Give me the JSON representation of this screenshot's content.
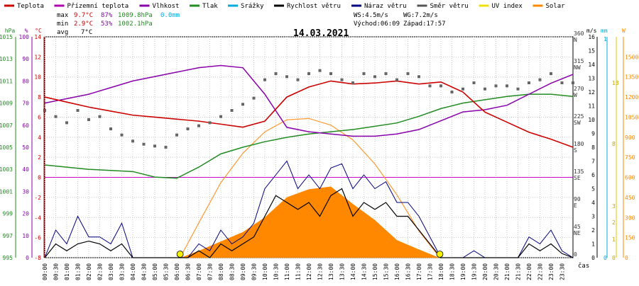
{
  "chart_data": {
    "type": "line",
    "title": "14.03.2021",
    "legend": [
      {
        "label": "Teplota",
        "color": "#cc0000"
      },
      {
        "label": "Přízemní teplota",
        "color": "#b000b0"
      },
      {
        "label": "Vlhkost",
        "color": "#8800aa"
      },
      {
        "label": "Tlak",
        "color": "#228b22"
      },
      {
        "label": "Srážky",
        "color": "#00aadd"
      },
      {
        "label": "Rychlost větru",
        "color": "#000000"
      },
      {
        "label": "Náraz větru",
        "color": "#000080"
      },
      {
        "label": "Směr větru",
        "color": "#555555"
      },
      {
        "label": "UV index",
        "color": "#f0e000"
      },
      {
        "label": "Solar",
        "color": "#ff8800"
      }
    ],
    "stats": {
      "max_label": "max",
      "min_label": "min",
      "avg_label": "avg",
      "max_temp": "9.7°C",
      "max_hum": "87%",
      "max_press": "1009.8hPa",
      "max_rain": "0.0mm",
      "min_temp": "2.9°C",
      "min_hum": "53%",
      "min_press": "1002.1hPa",
      "avg_temp": "7°C",
      "ws": "WS:4.5m/s",
      "wg": "WG:7.2m/s",
      "sunrise": "Východ:06:09",
      "sunset": "Západ:17:57"
    },
    "axes": {
      "hpa": {
        "unit": "hPa",
        "ticks": [
          "1015",
          "1013",
          "1011",
          "1009",
          "1007",
          "1005",
          "1003",
          "1001",
          "999",
          "997",
          "995"
        ],
        "range": [
          995,
          1015
        ]
      },
      "humidity": {
        "unit": "%",
        "ticks": [
          "100",
          "90",
          "80",
          "70",
          "60",
          "50",
          "40",
          "30",
          "20",
          "10",
          "0"
        ],
        "range": [
          0,
          100
        ]
      },
      "temp": {
        "unit": "°C",
        "ticks": [
          "14",
          "12",
          "10",
          "8",
          "6",
          "4",
          "2",
          "0",
          "-2",
          "-4",
          "-6",
          "-8"
        ],
        "range": [
          -8,
          14
        ]
      },
      "direction": {
        "ticks": [
          "360\nN",
          "315\nNW",
          "270\nW",
          "225\nSW",
          "180\nS",
          "135\nSE",
          "90\nE",
          "45\nNE",
          "0"
        ],
        "range": [
          0,
          360
        ]
      },
      "ms": {
        "unit": "m/s",
        "ticks": [
          "16",
          "15",
          "14",
          "13",
          "12",
          "11",
          "10",
          "9",
          "8",
          "7",
          "6",
          "5",
          "4",
          "3",
          "2",
          "1",
          "0"
        ],
        "range": [
          0,
          16
        ]
      },
      "mm": {
        "unit": "mm",
        "ticks": [
          "1",
          "0"
        ],
        "range": [
          0,
          1
        ]
      },
      "uv": {
        "ticks": [
          "13",
          "8",
          "3",
          "2",
          "1",
          "0"
        ]
      },
      "solar": {
        "unit": "W",
        "ticks": [
          "1500",
          "1350",
          "1200",
          "1050",
          "900",
          "750",
          "600",
          "450",
          "300",
          "150",
          "0"
        ],
        "range": [
          0,
          1500
        ]
      },
      "x_ticks": [
        "00:00",
        "00:30",
        "01:00",
        "01:30",
        "02:00",
        "02:30",
        "03:00",
        "03:30",
        "04:00",
        "04:30",
        "05:00",
        "05:30",
        "06:00",
        "06:30",
        "07:00",
        "07:30",
        "08:00",
        "08:30",
        "09:00",
        "09:30",
        "10:00",
        "10:30",
        "11:00",
        "11:30",
        "12:00",
        "12:30",
        "13:00",
        "13:30",
        "14:00",
        "14:30",
        "15:00",
        "15:30",
        "16:00",
        "16:30",
        "17:00",
        "17:30",
        "18:00",
        "18:30",
        "19:00",
        "19:30",
        "20:00",
        "20:30",
        "21:00",
        "21:30",
        "22:00",
        "22:30",
        "23:00",
        "23:30"
      ],
      "x_label": "čas"
    },
    "temperature": {
      "x": [
        0,
        1,
        2,
        3,
        4,
        5,
        6,
        7,
        8,
        9,
        10,
        11,
        12,
        13,
        14,
        15,
        16,
        17,
        18,
        19,
        20,
        21,
        22,
        23,
        24
      ],
      "y": [
        8,
        7.5,
        7,
        6.6,
        6.2,
        6,
        5.8,
        5.6,
        5.3,
        5,
        5.6,
        8,
        9,
        9.6,
        9.3,
        9.4,
        9.6,
        9.3,
        9.5,
        8.5,
        6.5,
        5.5,
        4.5,
        3.8,
        3
      ]
    },
    "humidity": {
      "x": [
        0,
        1,
        2,
        3,
        4,
        5,
        6,
        7,
        8,
        9,
        10,
        11,
        12,
        13,
        14,
        15,
        16,
        17,
        18,
        19,
        20,
        21,
        22,
        23,
        24
      ],
      "y": [
        70,
        72,
        74,
        77,
        80,
        82,
        84,
        86,
        87,
        86,
        74,
        59,
        57,
        56,
        55,
        55,
        56,
        58,
        62,
        66,
        67,
        69,
        74,
        79,
        83
      ]
    },
    "pressure": {
      "x": [
        0,
        2,
        4,
        5,
        6,
        7,
        8,
        9,
        10,
        11,
        12,
        13,
        14,
        15,
        16,
        17,
        18,
        19,
        20,
        21,
        22,
        23,
        24
      ],
      "y": [
        1003.4,
        1003.0,
        1002.8,
        1002.3,
        1002.2,
        1003.2,
        1004.4,
        1005.0,
        1005.5,
        1005.9,
        1006.2,
        1006.4,
        1006.6,
        1006.9,
        1007.2,
        1007.8,
        1008.5,
        1009.0,
        1009.3,
        1009.6,
        1009.8,
        1009.8,
        1009.6
      ]
    },
    "solar": {
      "x": [
        6.2,
        7,
        8,
        9,
        10,
        11,
        12,
        13,
        14,
        15,
        16,
        17,
        17.9
      ],
      "y": [
        0,
        50,
        120,
        190,
        300,
        450,
        510,
        530,
        400,
        280,
        130,
        60,
        0
      ]
    },
    "solar_theoretical": {
      "x": [
        6.15,
        7,
        8,
        9,
        10,
        11,
        12,
        13,
        14,
        15,
        16,
        17,
        17.95
      ],
      "y": [
        0,
        260,
        560,
        780,
        940,
        1030,
        1040,
        990,
        880,
        700,
        470,
        200,
        0
      ]
    },
    "wind_speed": {
      "x": [
        0,
        0.5,
        1,
        1.5,
        2,
        2.5,
        3,
        3.5,
        4,
        4.5,
        5,
        5.5,
        6,
        6.5,
        7,
        7.5,
        8,
        8.5,
        9,
        9.5,
        10,
        10.5,
        11,
        11.5,
        12,
        12.5,
        13,
        13.5,
        14,
        14.5,
        15,
        15.5,
        16,
        16.5,
        17,
        17.5,
        18,
        18.5,
        19,
        19.5,
        20,
        20.5,
        21,
        21.5,
        22,
        22.5,
        23,
        23.5,
        24
      ],
      "y": [
        0,
        1,
        0.5,
        1,
        1.2,
        1,
        0.5,
        1,
        0,
        0,
        0,
        0,
        0,
        0,
        0.5,
        0,
        1,
        0.5,
        1,
        1.5,
        3,
        4.5,
        4,
        3.5,
        4,
        3,
        4.5,
        5,
        3,
        4,
        3.5,
        4,
        3,
        3,
        2,
        1,
        0,
        0,
        0,
        0,
        0,
        0,
        0,
        0,
        1,
        0.5,
        1,
        0.3,
        0
      ]
    },
    "wind_gust": {
      "x": [
        0,
        0.5,
        1,
        1.5,
        2,
        2.5,
        3,
        3.5,
        4,
        4.5,
        5,
        5.5,
        6,
        6.5,
        7,
        7.5,
        8,
        8.5,
        9,
        9.5,
        10,
        10.5,
        11,
        11.5,
        12,
        12.5,
        13,
        13.5,
        14,
        14.5,
        15,
        15.5,
        16,
        16.5,
        17,
        17.5,
        18,
        18.5,
        19,
        19.5,
        20,
        20.5,
        21,
        21.5,
        22,
        22.5,
        23,
        23.5,
        24
      ],
      "y": [
        0,
        2,
        1,
        3,
        1.5,
        1.5,
        1,
        2.5,
        0,
        0,
        0,
        0,
        0,
        0,
        1,
        0.5,
        2,
        1,
        1.5,
        2.5,
        5,
        6,
        7,
        5,
        6,
        5,
        6.5,
        6.8,
        5,
        6,
        5,
        5.5,
        4,
        4,
        3,
        1.5,
        0,
        0,
        0,
        0.5,
        0,
        0,
        0,
        0,
        1.5,
        1,
        2,
        0.5,
        0
      ]
    },
    "wind_direction": {
      "x": [
        0,
        0.5,
        1,
        1.5,
        2,
        2.5,
        3,
        3.5,
        4,
        4.5,
        5,
        5.5,
        6,
        6.5,
        7,
        7.5,
        8,
        8.5,
        9,
        9.5,
        10,
        10.5,
        11,
        11.5,
        12,
        12.5,
        13,
        13.5,
        14,
        14.5,
        15,
        15.5,
        16,
        16.5,
        17,
        17.5,
        18,
        18.5,
        19,
        19.5,
        20,
        20.5,
        21,
        21.5,
        22,
        22.5,
        23,
        23.5,
        24
      ],
      "y": [
        240,
        230,
        220,
        240,
        225,
        230,
        210,
        200,
        190,
        185,
        182,
        180,
        200,
        210,
        215,
        220,
        230,
        240,
        250,
        260,
        290,
        300,
        295,
        290,
        300,
        305,
        300,
        290,
        285,
        300,
        295,
        300,
        290,
        300,
        295,
        280,
        280,
        270,
        275,
        285,
        275,
        280,
        280,
        275,
        285,
        290,
        300,
        285,
        285
      ]
    },
    "uv_markers": {
      "x": [
        6.15,
        17.95
      ],
      "y": [
        0,
        0
      ]
    }
  }
}
